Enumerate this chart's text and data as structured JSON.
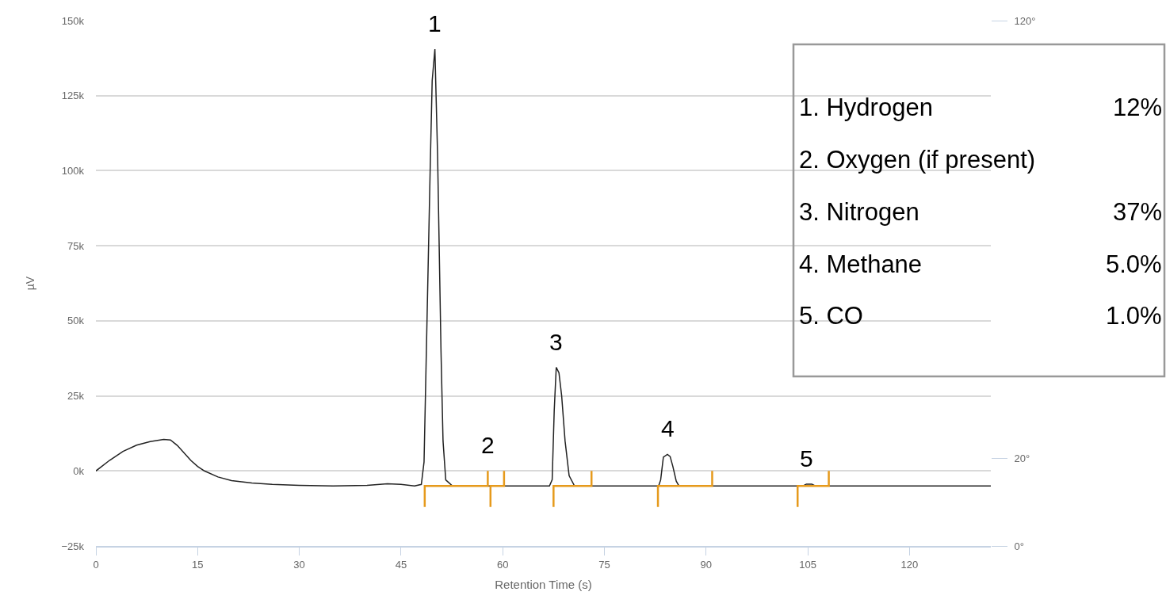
{
  "chart_data": {
    "type": "line",
    "xlabel": "Retention Time (s)",
    "ylabel": "µV",
    "xlim": [
      0,
      132
    ],
    "xticks": [
      0,
      15,
      30,
      45,
      60,
      75,
      90,
      105,
      120
    ],
    "ylim": [
      -25000,
      150000
    ],
    "yticks": [
      {
        "value": -25000,
        "label": "−25k"
      },
      {
        "value": 0,
        "label": "0k"
      },
      {
        "value": 25000,
        "label": "25k"
      },
      {
        "value": 50000,
        "label": "50k"
      },
      {
        "value": 75000,
        "label": "75k"
      },
      {
        "value": 100000,
        "label": "100k"
      },
      {
        "value": 125000,
        "label": "125k"
      },
      {
        "value": 150000,
        "label": "150k"
      }
    ],
    "y2lim": [
      0,
      120
    ],
    "y2ticks": [
      {
        "value": 0,
        "label": "0°"
      },
      {
        "value": 20,
        "label": "20°"
      },
      {
        "value": 120,
        "label": "120°"
      }
    ],
    "grid": "y",
    "marker": "none",
    "line_style": "solid",
    "series": [
      {
        "color": "#222222",
        "x": [
          0,
          2,
          4,
          6,
          8,
          10,
          11,
          12,
          14,
          15,
          16,
          18,
          20,
          23,
          26,
          30,
          35,
          40,
          43,
          45,
          47,
          48,
          48.4,
          49.3,
          49.6,
          50.0,
          50.4,
          50.9,
          51.2,
          51.6,
          52.5,
          53,
          66.9,
          67.3,
          67.6,
          67.9,
          68.3,
          68.7,
          69.2,
          69.8,
          70.6,
          83.0,
          83.3,
          83.7,
          84.3,
          84.7,
          85.1,
          85.6,
          86.0,
          104.3,
          104.8,
          105.6,
          106.1,
          132
        ],
        "values": [
          0,
          3500,
          6500,
          8600,
          9800,
          10500,
          10300,
          8500,
          3500,
          1500,
          0,
          -2000,
          -3200,
          -4000,
          -4500,
          -4800,
          -5000,
          -4800,
          -4300,
          -4500,
          -5000,
          -4500,
          3000,
          100000,
          130000,
          140500,
          105000,
          40000,
          10000,
          -3000,
          -4800,
          -5000,
          -5000,
          -2900,
          20000,
          34500,
          32700,
          25000,
          10000,
          -1600,
          -5000,
          -5000,
          -3000,
          4600,
          5500,
          4800,
          1500,
          -3400,
          -5000,
          -5000,
          -4400,
          -4400,
          -5000,
          -5000
        ]
      },
      {
        "color": "#e69a1c",
        "x": [
          48.5,
          48.5,
          57.8,
          57.8,
          null,
          58.2,
          58.2,
          60.2,
          60.2,
          null,
          67.5,
          67.5,
          73.1,
          73.1,
          null,
          82.9,
          82.9,
          90.9,
          90.9,
          null,
          103.5,
          103.5,
          108.1,
          108.1
        ],
        "values": [
          -12000,
          -5000,
          -5000,
          0,
          null,
          -12000,
          -5000,
          -5000,
          0,
          null,
          -12000,
          -5000,
          -5000,
          0,
          null,
          -12000,
          -5000,
          -5000,
          0,
          null,
          -12000,
          -5000,
          -5000,
          0
        ]
      }
    ],
    "annotations": [
      {
        "text": "1",
        "x": 50.0,
        "y": 140500
      },
      {
        "text": "2",
        "x": 57.8,
        "y": 0
      },
      {
        "text": "3",
        "x": 67.9,
        "y": 34500
      },
      {
        "text": "4",
        "x": 84.3,
        "y": 5500
      },
      {
        "text": "5",
        "x": 104.8,
        "y": -4400
      },
      "1. Hydrogen",
      "12%",
      "2. Oxygen (if present)",
      "3. Nitrogen",
      "37%",
      "4. Methane",
      "5.0%",
      "5. CO",
      "1.0%"
    ]
  }
}
